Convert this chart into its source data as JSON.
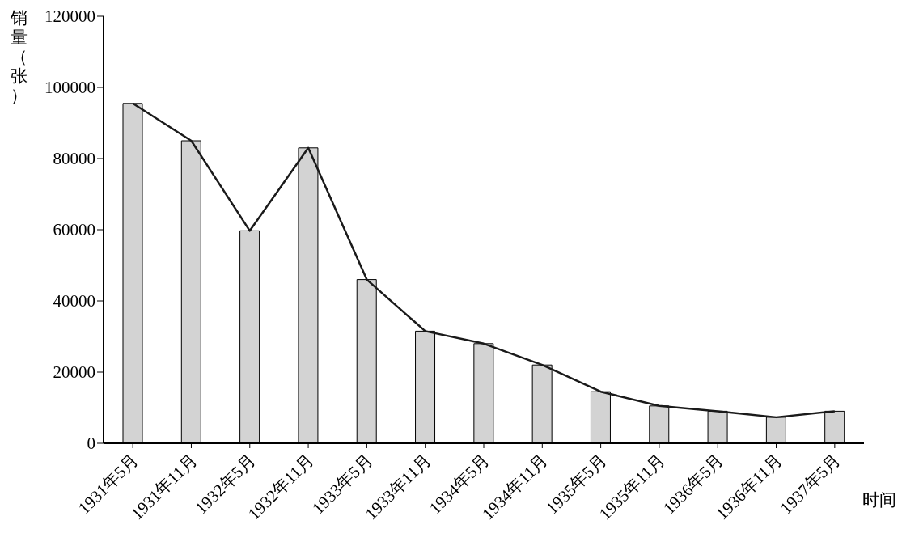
{
  "chart_data": {
    "type": "bar",
    "ylabel": "销量（张）",
    "xlabel": "时间",
    "categories": [
      "1931年5月",
      "1931年11月",
      "1932年5月",
      "1932年11月",
      "1933年5月",
      "1933年11月",
      "1934年5月",
      "1934年11月",
      "1935年5月",
      "1935年11月",
      "1936年5月",
      "1936年11月",
      "1937年5月"
    ],
    "series": [
      {
        "color": "#d3d3d3",
        "values": [
          95500,
          85000,
          59700,
          83000,
          46000,
          31500,
          28000,
          22000,
          14500,
          10500,
          9000,
          7300,
          9000
        ]
      },
      {
        "type": "line",
        "color": "#1a1a1a",
        "values": [
          95500,
          85000,
          59700,
          83000,
          46000,
          31500,
          28000,
          22000,
          14500,
          10500,
          9000,
          7300,
          9000
        ]
      }
    ],
    "ylim": [
      0,
      120000
    ],
    "yticks": [
      0,
      20000,
      40000,
      60000,
      80000,
      100000,
      120000
    ],
    "grid": false,
    "legend": false,
    "marker": "none",
    "line_style": "solid"
  }
}
